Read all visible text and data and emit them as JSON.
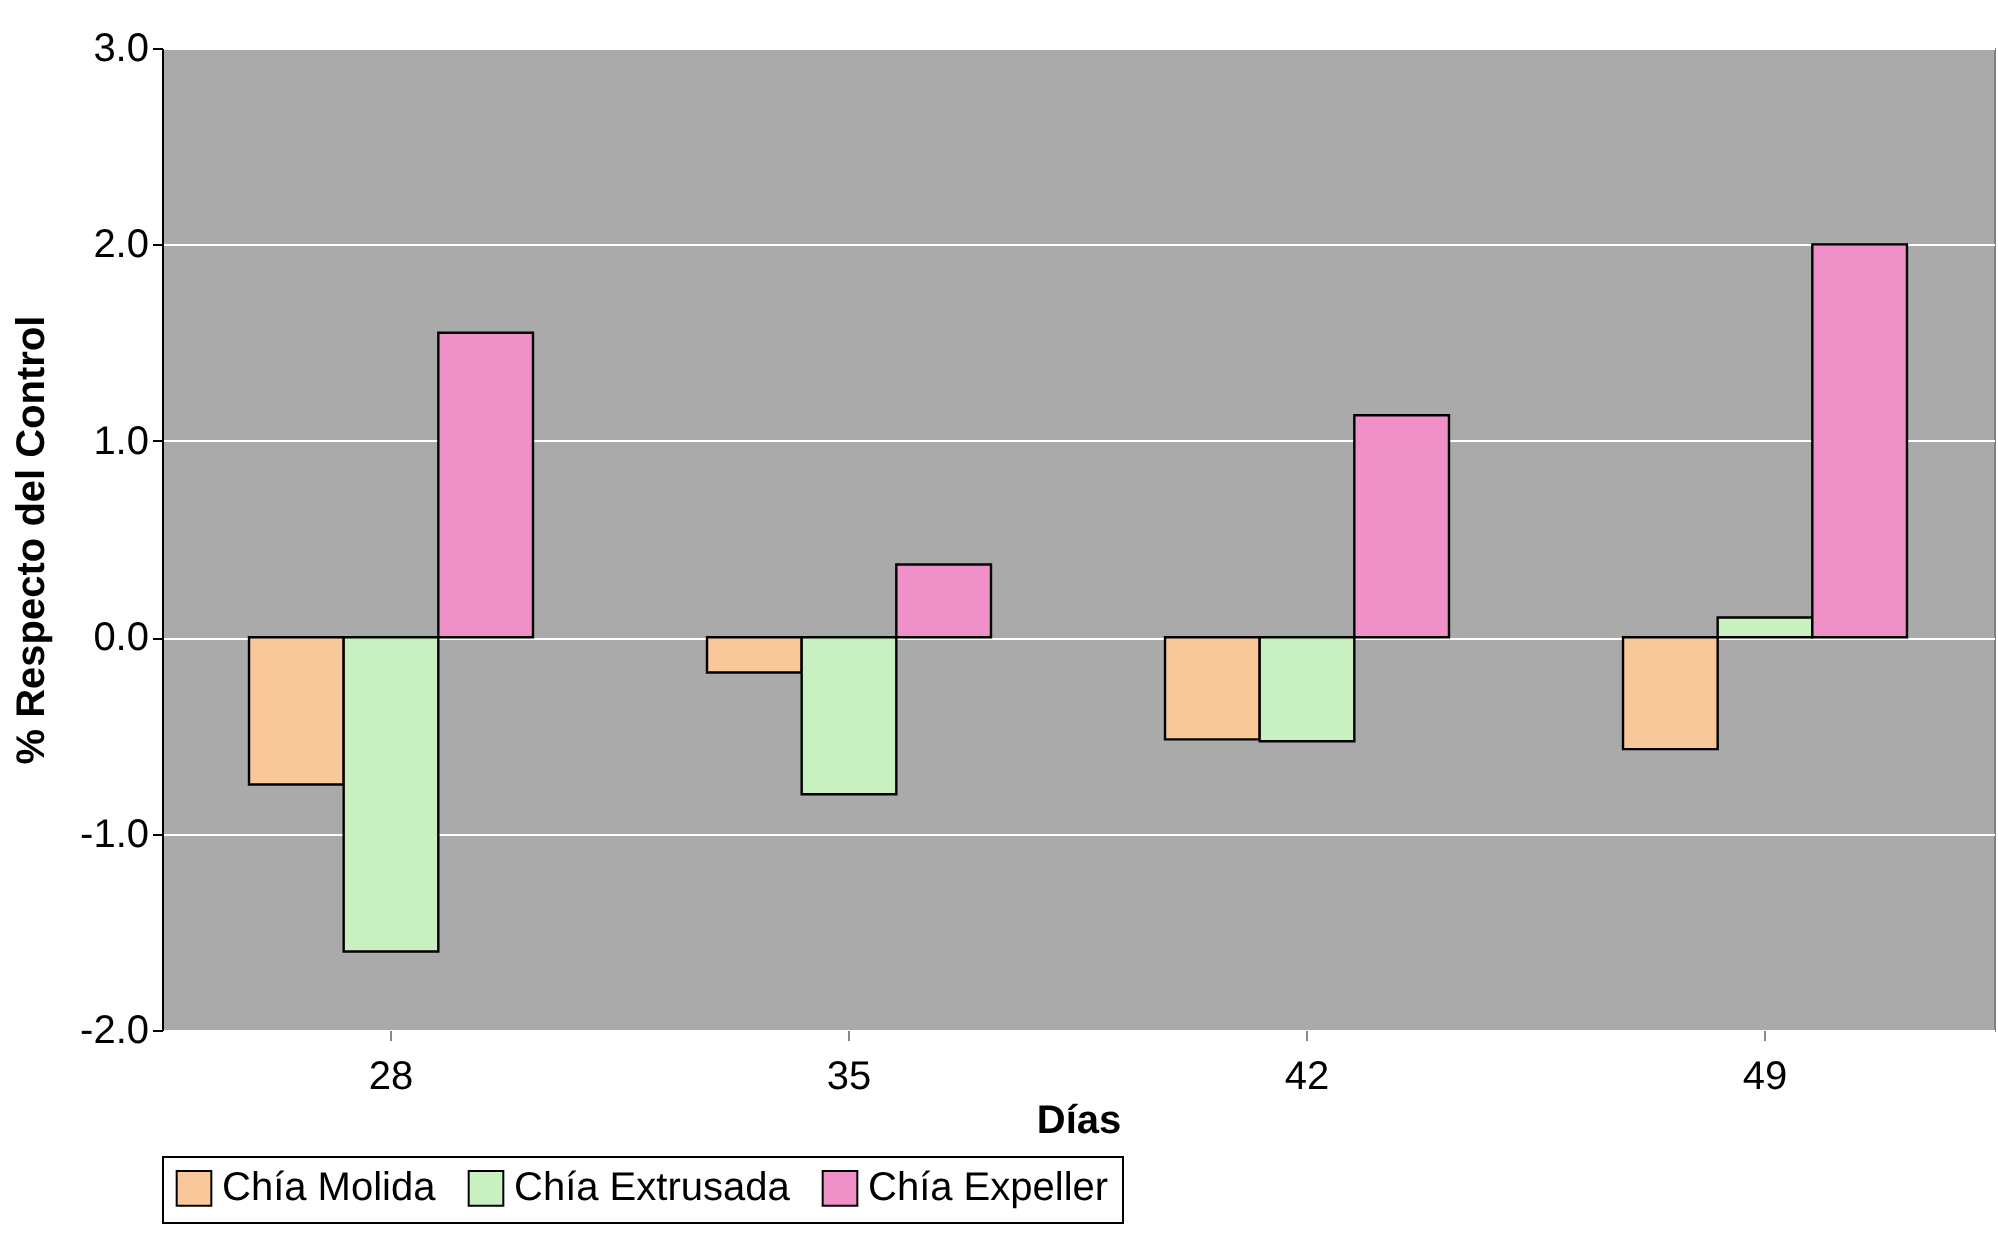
{
  "chart_data": {
    "type": "bar",
    "xlabel": "Días",
    "ylabel": "% Respecto del Control",
    "categories": [
      "28",
      "35",
      "42",
      "49"
    ],
    "series": [
      {
        "name": "Chía Molida",
        "color": "#f8c89a",
        "values": [
          -0.75,
          -0.18,
          -0.52,
          -0.57
        ]
      },
      {
        "name": "Chía Extrusada",
        "color": "#c8f0c0",
        "values": [
          -1.6,
          -0.8,
          -0.53,
          0.1
        ]
      },
      {
        "name": "Chía Expeller",
        "color": "#f090c8",
        "values": [
          1.55,
          0.37,
          1.13,
          2.0
        ]
      }
    ],
    "ylim": [
      -2,
      3
    ],
    "yticks": [
      {
        "value": -2,
        "label": "-2.0"
      },
      {
        "value": -1,
        "label": "-1.0"
      },
      {
        "value": 0,
        "label": "0.0"
      },
      {
        "value": 1,
        "label": "1.0"
      },
      {
        "value": 2,
        "label": "2.0"
      },
      {
        "value": 3,
        "label": "3.0"
      }
    ],
    "grid": "y",
    "legend": "bottom"
  }
}
